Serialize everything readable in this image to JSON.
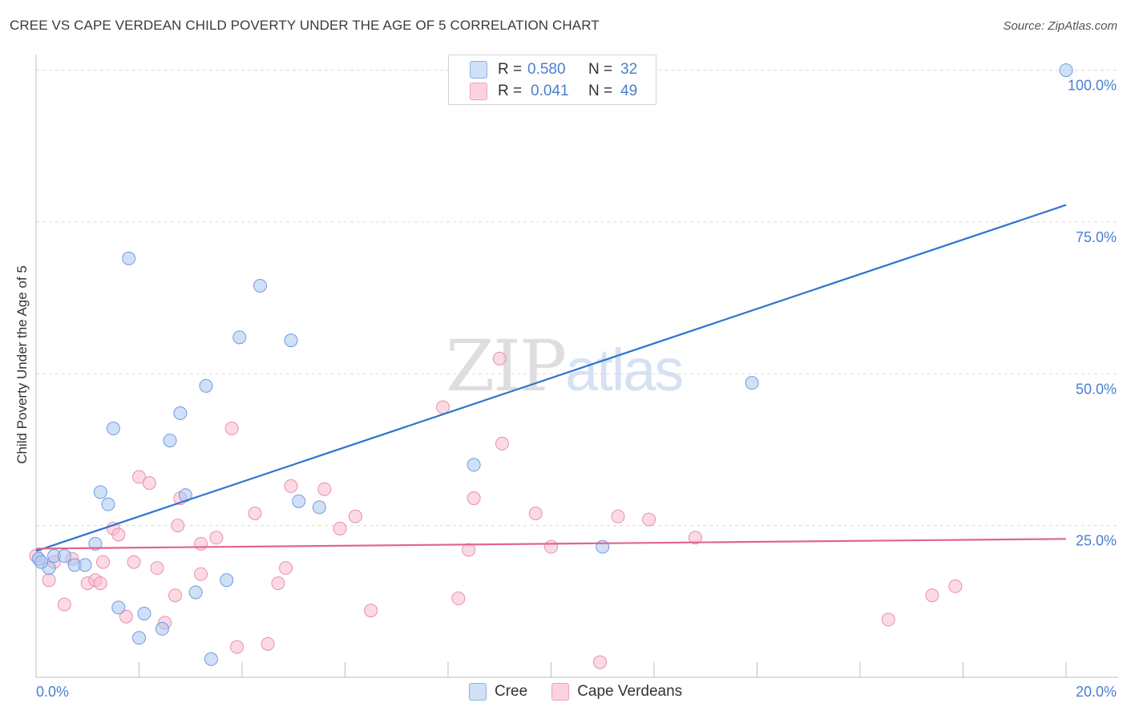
{
  "header": {
    "title": "CREE VS CAPE VERDEAN CHILD POVERTY UNDER THE AGE OF 5 CORRELATION CHART",
    "source": "Source: ZipAtlas.com"
  },
  "watermark": {
    "zip": "ZIP",
    "atlas": "atlas"
  },
  "legend": {
    "rows": [
      {
        "r_label": "R =",
        "r_value": "0.580",
        "n_label": "N =",
        "n_value": "32",
        "color": "#a9c6f0"
      },
      {
        "r_label": "R =",
        "r_value": "0.041",
        "n_label": "N =",
        "n_value": "49",
        "color": "#f7bccd"
      }
    ]
  },
  "bottom_legend": {
    "cree": "Cree",
    "cape": "Cape Verdeans"
  },
  "colors": {
    "cree_fill": "#a9c6f0",
    "cree_stroke": "#6f9be0",
    "cree_line": "#2f74d0",
    "cape_fill": "#f7bccd",
    "cape_stroke": "#ea8fae",
    "cape_line": "#e2648f",
    "grid": "#dadada",
    "tick_label": "#4a7fd1"
  },
  "chart_data": {
    "type": "scatter",
    "title": "CREE VS CAPE VERDEAN CHILD POVERTY UNDER THE AGE OF 5 CORRELATION CHART",
    "xlabel": "",
    "ylabel": "Child Poverty Under the Age of 5",
    "xlim": [
      0,
      20
    ],
    "ylim": [
      0,
      101
    ],
    "x_tick_labels": [
      "0.0%",
      "20.0%"
    ],
    "y_ticks": [
      25,
      50,
      75,
      100
    ],
    "y_tick_labels": [
      "25.0%",
      "50.0%",
      "75.0%",
      "100.0%"
    ],
    "grid": true,
    "series": [
      {
        "name": "Cree",
        "points": [
          [
            0.05,
            19.5
          ],
          [
            0.25,
            18.0
          ],
          [
            0.35,
            20.0
          ],
          [
            0.55,
            20.0
          ],
          [
            0.75,
            18.5
          ],
          [
            0.95,
            18.5
          ],
          [
            1.15,
            22.0
          ],
          [
            1.25,
            30.5
          ],
          [
            1.4,
            28.5
          ],
          [
            1.5,
            41.0
          ],
          [
            1.6,
            11.5
          ],
          [
            1.8,
            69.0
          ],
          [
            2.0,
            6.5
          ],
          [
            2.1,
            10.5
          ],
          [
            2.45,
            8.0
          ],
          [
            2.6,
            39.0
          ],
          [
            2.8,
            43.5
          ],
          [
            2.9,
            30.0
          ],
          [
            3.1,
            14.0
          ],
          [
            3.3,
            48.0
          ],
          [
            3.4,
            3.0
          ],
          [
            3.7,
            16.0
          ],
          [
            3.95,
            56.0
          ],
          [
            4.35,
            64.5
          ],
          [
            4.95,
            55.5
          ],
          [
            5.1,
            29.0
          ],
          [
            5.5,
            28.0
          ],
          [
            8.5,
            35.0
          ],
          [
            11.0,
            21.5
          ],
          [
            13.9,
            48.5
          ],
          [
            20.0,
            100.0
          ],
          [
            0.1,
            19.0
          ]
        ]
      },
      {
        "name": "Cape Verdeans",
        "points": [
          [
            0.0,
            20.0
          ],
          [
            0.25,
            16.0
          ],
          [
            0.35,
            19.0
          ],
          [
            0.55,
            12.0
          ],
          [
            0.7,
            19.5
          ],
          [
            1.0,
            15.5
          ],
          [
            1.15,
            16.0
          ],
          [
            1.25,
            15.5
          ],
          [
            1.3,
            19.0
          ],
          [
            1.5,
            24.5
          ],
          [
            1.6,
            23.5
          ],
          [
            1.75,
            10.0
          ],
          [
            1.9,
            19.0
          ],
          [
            2.0,
            33.0
          ],
          [
            2.2,
            32.0
          ],
          [
            2.35,
            18.0
          ],
          [
            2.5,
            9.0
          ],
          [
            2.7,
            13.5
          ],
          [
            2.75,
            25.0
          ],
          [
            2.8,
            29.5
          ],
          [
            3.2,
            22.0
          ],
          [
            3.2,
            17.0
          ],
          [
            3.5,
            23.0
          ],
          [
            3.8,
            41.0
          ],
          [
            3.9,
            5.0
          ],
          [
            4.25,
            27.0
          ],
          [
            4.5,
            5.5
          ],
          [
            4.7,
            15.5
          ],
          [
            4.85,
            18.0
          ],
          [
            4.95,
            31.5
          ],
          [
            5.6,
            31.0
          ],
          [
            5.9,
            24.5
          ],
          [
            6.2,
            26.5
          ],
          [
            6.5,
            11.0
          ],
          [
            7.9,
            44.5
          ],
          [
            8.2,
            13.0
          ],
          [
            8.4,
            21.0
          ],
          [
            8.5,
            29.5
          ],
          [
            9.0,
            52.5
          ],
          [
            9.05,
            38.5
          ],
          [
            9.7,
            27.0
          ],
          [
            10.0,
            21.5
          ],
          [
            10.95,
            2.5
          ],
          [
            11.3,
            26.5
          ],
          [
            11.9,
            26.0
          ],
          [
            12.8,
            23.0
          ],
          [
            16.55,
            9.5
          ],
          [
            17.4,
            13.5
          ],
          [
            17.85,
            15.0
          ]
        ]
      }
    ],
    "trend_lines": [
      {
        "name": "Cree",
        "from": [
          0,
          20.8
        ],
        "to": [
          20,
          77.8
        ]
      },
      {
        "name": "Cape Verdeans",
        "from": [
          0,
          21.2
        ],
        "to": [
          20,
          22.8
        ]
      }
    ]
  }
}
